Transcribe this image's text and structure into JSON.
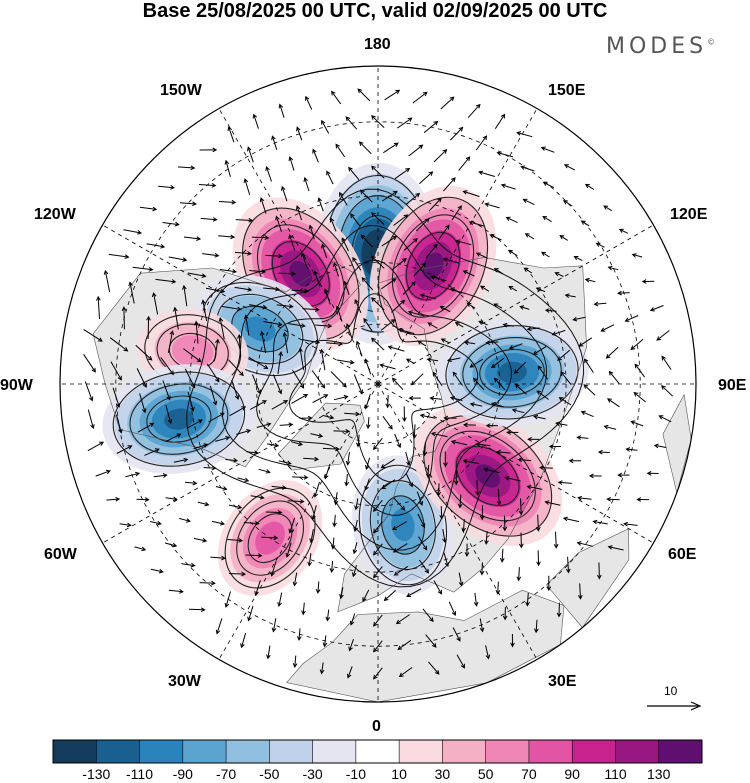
{
  "title": "Base 25/08/2025 00 UTC, valid 02/09/2025 00 UTC",
  "brand": "MODES",
  "brand_mark": "©",
  "map": {
    "projection": "north-polar-stereographic",
    "longitude_labels": [
      "180",
      "150E",
      "120E",
      "90E",
      "60E",
      "30E",
      "0",
      "30W",
      "60W",
      "90W",
      "120W",
      "150W"
    ],
    "reference_vector_label": "10",
    "anomaly_centres": [
      {
        "lon": 180,
        "lat": 58,
        "sign": "negative",
        "peak": -130
      },
      {
        "lon": 155,
        "lat": 58,
        "sign": "positive",
        "peak": 110
      },
      {
        "lon": -145,
        "lat": 57,
        "sign": "positive",
        "peak": 110
      },
      {
        "lon": -115,
        "lat": 58,
        "sign": "negative",
        "peak": -70
      },
      {
        "lon": -100,
        "lat": 45,
        "sign": "positive",
        "peak": 30
      },
      {
        "lon": -80,
        "lat": 42,
        "sign": "negative",
        "peak": -90
      },
      {
        "lon": -35,
        "lat": 45,
        "sign": "positive",
        "peak": 50
      },
      {
        "lon": 10,
        "lat": 55,
        "sign": "negative",
        "peak": -70
      },
      {
        "lon": 50,
        "lat": 55,
        "sign": "positive",
        "peak": 110
      },
      {
        "lon": 95,
        "lat": 57,
        "sign": "negative",
        "peak": -90
      }
    ]
  },
  "colorbar": {
    "colors": [
      "#133c5c",
      "#195f8f",
      "#2a83ba",
      "#5ba4d0",
      "#91bfe0",
      "#c0d2ea",
      "#e4e5f1",
      "#ffffff",
      "#f9dbe0",
      "#f4b1c5",
      "#ef86b6",
      "#e255a4",
      "#c8228f",
      "#981882",
      "#5e0f6f"
    ],
    "tick_labels": [
      "-130",
      "-110",
      "-90",
      "-70",
      "-50",
      "-30",
      "-10",
      "10",
      "30",
      "50",
      "70",
      "90",
      "110",
      "130"
    ]
  }
}
